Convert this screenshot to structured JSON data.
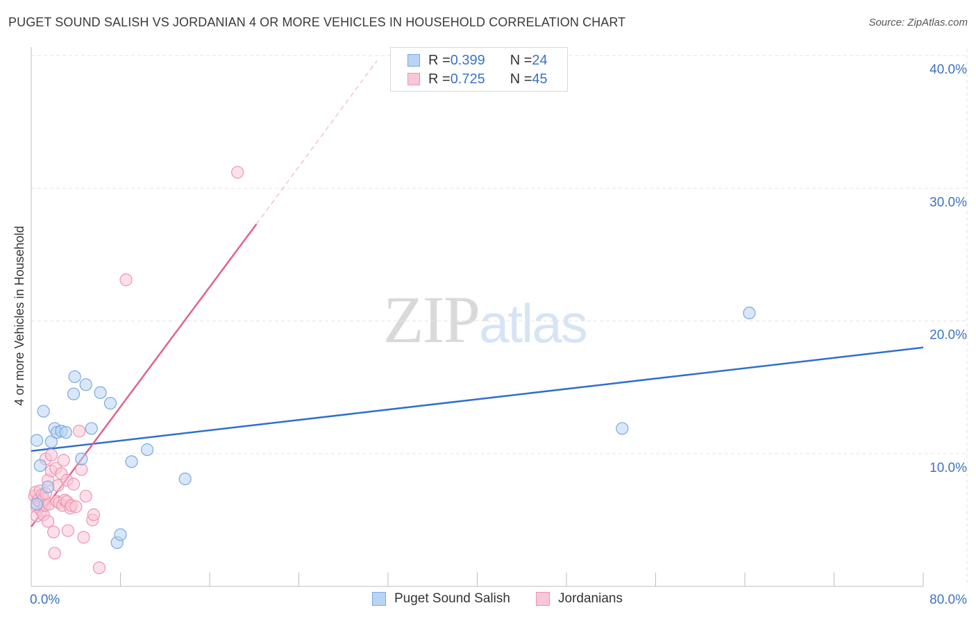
{
  "header": {
    "title": "PUGET SOUND SALISH VS JORDANIAN 4 OR MORE VEHICLES IN HOUSEHOLD CORRELATION CHART",
    "source": "Source: ZipAtlas.com"
  },
  "watermark": {
    "zip": "ZIP",
    "atlas": "atlas"
  },
  "legend": {
    "rows": [
      {
        "r_label": "R = ",
        "r_value": "0.399",
        "n_label": "N = ",
        "n_value": "24"
      },
      {
        "r_label": "R = ",
        "r_value": "0.725",
        "n_label": "N = ",
        "n_value": "45"
      }
    ]
  },
  "colors": {
    "blue_fill": "#b8d3f5",
    "blue_stroke": "#7aa8e0",
    "blue_line": "#2f6fcc",
    "pink_fill": "#f9c6d6",
    "pink_stroke": "#ee93b2",
    "pink_line": "#e2608f",
    "grid": "#e3e3e3",
    "tick_text": "#3b73c4"
  },
  "chart_data": {
    "type": "scatter",
    "title": "PUGET SOUND SALISH VS JORDANIAN 4 OR MORE VEHICLES IN HOUSEHOLD CORRELATION CHART",
    "xlabel": "",
    "ylabel": "4 or more Vehicles in Household",
    "xlim": [
      0,
      80
    ],
    "ylim": [
      0,
      40
    ],
    "x_tick_labels": [
      "0.0%",
      "80.0%"
    ],
    "y_ticks": [
      10,
      20,
      30,
      40
    ],
    "y_tick_labels": [
      "10.0%",
      "20.0%",
      "30.0%",
      "40.0%"
    ],
    "grid": true,
    "legend_position": "bottom",
    "series": [
      {
        "name": "Puget Sound Salish",
        "points": [
          [
            0.5,
            6.2
          ],
          [
            0.5,
            11.0
          ],
          [
            0.8,
            9.1
          ],
          [
            1.1,
            13.2
          ],
          [
            1.5,
            7.5
          ],
          [
            1.8,
            10.9
          ],
          [
            2.1,
            11.9
          ],
          [
            2.3,
            11.6
          ],
          [
            2.7,
            11.7
          ],
          [
            3.1,
            11.6
          ],
          [
            3.8,
            14.5
          ],
          [
            3.9,
            15.8
          ],
          [
            4.5,
            9.6
          ],
          [
            4.9,
            15.2
          ],
          [
            5.4,
            11.9
          ],
          [
            6.2,
            14.6
          ],
          [
            7.1,
            13.8
          ],
          [
            7.7,
            3.3
          ],
          [
            8.0,
            3.9
          ],
          [
            9.0,
            9.4
          ],
          [
            10.4,
            10.3
          ],
          [
            13.8,
            8.1
          ],
          [
            53.0,
            11.9
          ],
          [
            64.4,
            20.6
          ]
        ],
        "trend": {
          "x0": 0,
          "y0": 10.2,
          "x1": 80,
          "y1": 18.0
        }
      },
      {
        "name": "Jordanians",
        "points": [
          [
            0.3,
            6.8
          ],
          [
            0.4,
            7.1
          ],
          [
            0.5,
            6.0
          ],
          [
            0.5,
            5.3
          ],
          [
            0.6,
            6.5
          ],
          [
            0.8,
            7.2
          ],
          [
            0.8,
            6.3
          ],
          [
            0.9,
            5.7
          ],
          [
            1.0,
            6.9
          ],
          [
            1.1,
            6.6
          ],
          [
            1.1,
            5.4
          ],
          [
            1.2,
            6.1
          ],
          [
            1.3,
            7.0
          ],
          [
            1.3,
            9.6
          ],
          [
            1.5,
            8.0
          ],
          [
            1.5,
            4.9
          ],
          [
            1.6,
            6.2
          ],
          [
            1.8,
            8.7
          ],
          [
            1.8,
            9.9
          ],
          [
            2.0,
            4.1
          ],
          [
            2.1,
            2.5
          ],
          [
            2.2,
            8.9
          ],
          [
            2.3,
            6.4
          ],
          [
            2.4,
            7.6
          ],
          [
            2.5,
            6.3
          ],
          [
            2.7,
            8.5
          ],
          [
            2.8,
            6.1
          ],
          [
            2.9,
            9.5
          ],
          [
            3.0,
            6.5
          ],
          [
            3.2,
            6.4
          ],
          [
            3.2,
            8.0
          ],
          [
            3.3,
            4.2
          ],
          [
            3.5,
            5.9
          ],
          [
            3.6,
            6.1
          ],
          [
            3.8,
            7.7
          ],
          [
            4.0,
            6.0
          ],
          [
            4.3,
            11.7
          ],
          [
            4.5,
            8.8
          ],
          [
            4.7,
            3.7
          ],
          [
            4.9,
            6.8
          ],
          [
            5.5,
            5.0
          ],
          [
            5.6,
            5.4
          ],
          [
            6.1,
            1.4
          ],
          [
            8.5,
            23.1
          ],
          [
            18.5,
            31.2
          ]
        ],
        "trend": {
          "x0": 0,
          "y0": 4.5,
          "x1": 20.2,
          "y1": 27.3
        },
        "trend_extension": {
          "x0": 20.2,
          "y0": 27.3,
          "x1": 31.0,
          "y1": 39.6
        }
      }
    ]
  }
}
